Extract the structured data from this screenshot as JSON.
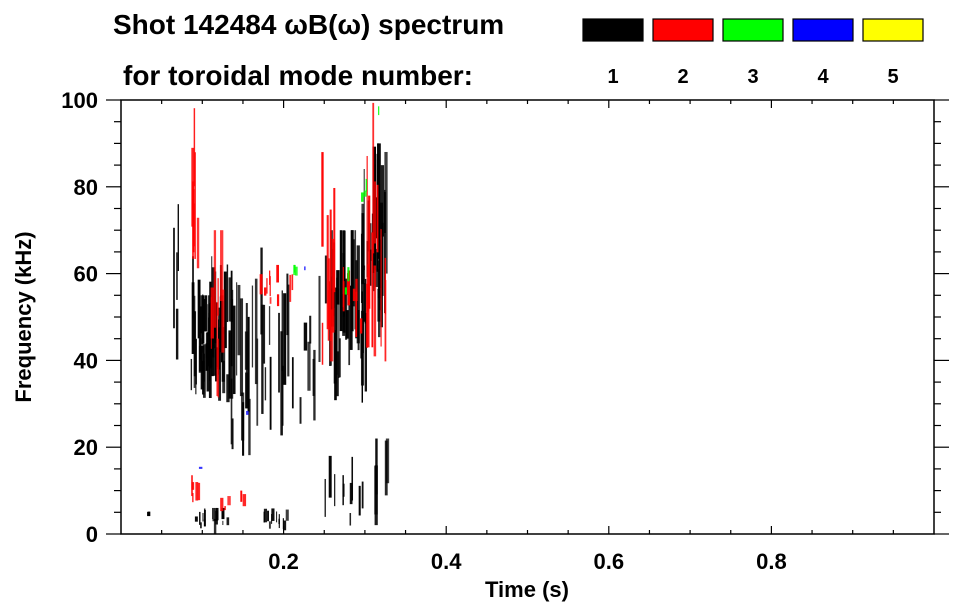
{
  "chart_data": {
    "type": "heatmap",
    "title_line1": "Shot 142484 ωB(ω) spectrum",
    "title_line2": "for toroidal mode number:",
    "xlabel": "Time (s)",
    "ylabel": "Frequency (kHz)",
    "xlim": [
      0,
      1.0
    ],
    "ylim": [
      0,
      100
    ],
    "x_ticks": [
      "0.2",
      "0.4",
      "0.6",
      "0.8"
    ],
    "x_tick_values": [
      0.2,
      0.4,
      0.6,
      0.8
    ],
    "y_ticks": [
      "0",
      "20",
      "40",
      "60",
      "80",
      "100"
    ],
    "y_tick_values": [
      0,
      20,
      40,
      60,
      80,
      100
    ],
    "legend": [
      {
        "label": "1",
        "color": "#000000"
      },
      {
        "label": "2",
        "color": "#ff0000"
      },
      {
        "label": "3",
        "color": "#00ff00"
      },
      {
        "label": "4",
        "color": "#0000ff"
      },
      {
        "label": "5",
        "color": "#ffff00"
      }
    ],
    "features": [
      {
        "mode": 1,
        "t": [
          0.064,
          0.072
        ],
        "f": [
          40,
          76
        ],
        "density": 4
      },
      {
        "mode": 1,
        "t": [
          0.085,
          0.135
        ],
        "f": [
          30,
          64
        ],
        "density": 40
      },
      {
        "mode": 1,
        "t": [
          0.095,
          0.125
        ],
        "f": [
          35,
          55
        ],
        "density": 30
      },
      {
        "mode": 1,
        "t": [
          0.13,
          0.16
        ],
        "f": [
          18,
          58
        ],
        "density": 14
      },
      {
        "mode": 1,
        "t": [
          0.16,
          0.2
        ],
        "f": [
          20,
          66
        ],
        "density": 14
      },
      {
        "mode": 1,
        "t": [
          0.2,
          0.24
        ],
        "f": [
          25,
          60
        ],
        "density": 8
      },
      {
        "mode": 1,
        "t": [
          0.235,
          0.26
        ],
        "f": [
          30,
          70
        ],
        "density": 8
      },
      {
        "mode": 1,
        "t": [
          0.26,
          0.3
        ],
        "f": [
          30,
          70
        ],
        "density": 34
      },
      {
        "mode": 1,
        "t": [
          0.295,
          0.325
        ],
        "f": [
          45,
          90
        ],
        "density": 34
      },
      {
        "mode": 1,
        "t": [
          0.025,
          0.035
        ],
        "f": [
          4,
          8
        ],
        "density": 2
      },
      {
        "mode": 1,
        "t": [
          0.088,
          0.13
        ],
        "f": [
          0,
          6
        ],
        "density": 16
      },
      {
        "mode": 1,
        "t": [
          0.175,
          0.205
        ],
        "f": [
          0,
          6
        ],
        "density": 12
      },
      {
        "mode": 1,
        "t": [
          0.25,
          0.3
        ],
        "f": [
          0,
          18
        ],
        "density": 10
      },
      {
        "mode": 1,
        "t": [
          0.31,
          0.33
        ],
        "f": [
          0,
          22
        ],
        "density": 5
      },
      {
        "mode": 2,
        "t": [
          0.086,
          0.094
        ],
        "f": [
          58,
          100
        ],
        "density": 8
      },
      {
        "mode": 2,
        "t": [
          0.11,
          0.135
        ],
        "f": [
          30,
          70
        ],
        "density": 8
      },
      {
        "mode": 2,
        "t": [
          0.17,
          0.215
        ],
        "f": [
          52,
          62
        ],
        "density": 10
      },
      {
        "mode": 2,
        "t": [
          0.245,
          0.262
        ],
        "f": [
          35,
          88
        ],
        "density": 10
      },
      {
        "mode": 2,
        "t": [
          0.27,
          0.3
        ],
        "f": [
          45,
          62
        ],
        "density": 8
      },
      {
        "mode": 2,
        "t": [
          0.3,
          0.325
        ],
        "f": [
          30,
          100
        ],
        "density": 12
      },
      {
        "mode": 2,
        "t": [
          0.085,
          0.1
        ],
        "f": [
          5,
          15
        ],
        "density": 5
      },
      {
        "mode": 2,
        "t": [
          0.12,
          0.15
        ],
        "f": [
          5,
          10
        ],
        "density": 5
      },
      {
        "mode": 3,
        "t": [
          0.21,
          0.225
        ],
        "f": [
          58,
          62
        ],
        "density": 3
      },
      {
        "mode": 3,
        "t": [
          0.27,
          0.28
        ],
        "f": [
          55,
          62
        ],
        "density": 2
      },
      {
        "mode": 3,
        "t": [
          0.295,
          0.305
        ],
        "f": [
          76,
          82
        ],
        "density": 3
      },
      {
        "mode": 3,
        "t": [
          0.315,
          0.322
        ],
        "f": [
          96,
          100
        ],
        "density": 1
      },
      {
        "mode": 4,
        "t": [
          0.22,
          0.228
        ],
        "f": [
          60,
          63
        ],
        "density": 1
      },
      {
        "mode": 4,
        "t": [
          0.15,
          0.155
        ],
        "f": [
          27,
          29
        ],
        "density": 1
      },
      {
        "mode": 4,
        "t": [
          0.095,
          0.1
        ],
        "f": [
          15,
          16
        ],
        "density": 1
      }
    ]
  }
}
